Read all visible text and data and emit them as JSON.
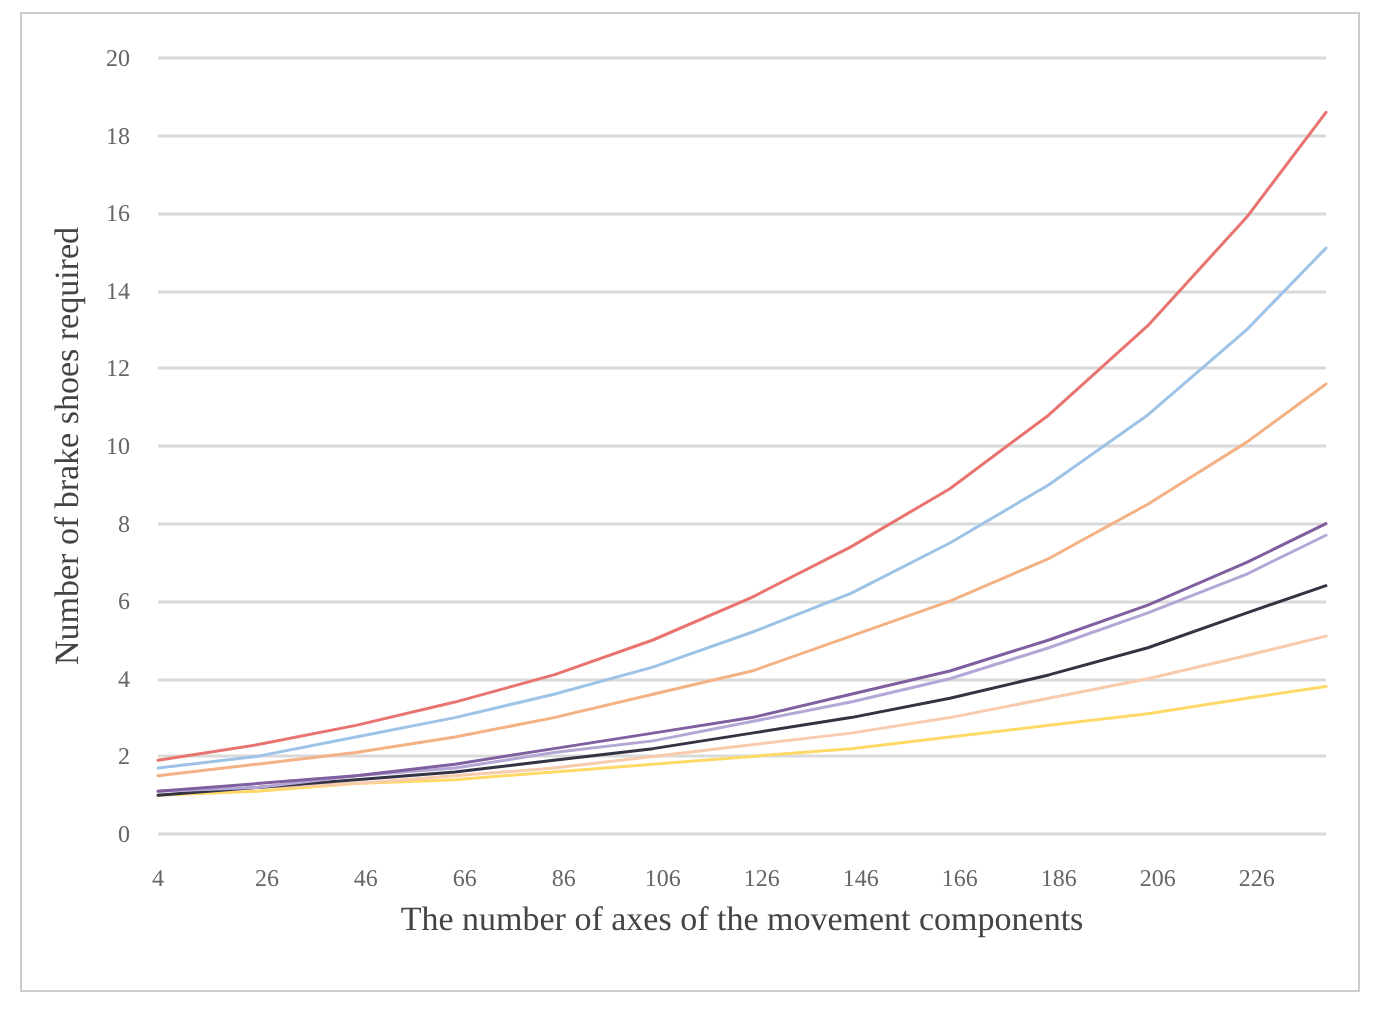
{
  "chart_data": {
    "type": "line",
    "xlabel": "The number of axes of the movement components",
    "ylabel": "Number of brake shoes required",
    "x": [
      4,
      24,
      44,
      64,
      84,
      104,
      124,
      144,
      164,
      184,
      204,
      224,
      240
    ],
    "series": [
      {
        "color": "#e8736f",
        "values": [
          1.9,
          2.3,
          2.8,
          3.4,
          4.1,
          5.0,
          6.1,
          7.4,
          8.9,
          10.8,
          13.1,
          15.9,
          18.6
        ]
      },
      {
        "color": "#9dc3e6",
        "values": [
          1.7,
          2.0,
          2.5,
          3.0,
          3.6,
          4.3,
          5.2,
          6.2,
          7.5,
          9.0,
          10.8,
          13.0,
          15.1
        ]
      },
      {
        "color": "#f4b183",
        "values": [
          1.5,
          1.8,
          2.1,
          2.5,
          3.0,
          3.6,
          4.2,
          5.1,
          6.0,
          7.1,
          8.5,
          10.1,
          11.6
        ]
      },
      {
        "color": "#7f5f9f",
        "values": [
          1.1,
          1.3,
          1.5,
          1.8,
          2.2,
          2.6,
          3.0,
          3.6,
          4.2,
          5.0,
          5.9,
          7.0,
          8.0
        ]
      },
      {
        "color": "#b4a7d6",
        "values": [
          1.1,
          1.2,
          1.5,
          1.7,
          2.1,
          2.4,
          2.9,
          3.4,
          4.0,
          4.8,
          5.7,
          6.7,
          7.7
        ]
      },
      {
        "color": "#333344",
        "values": [
          1.0,
          1.2,
          1.4,
          1.6,
          1.9,
          2.2,
          2.6,
          3.0,
          3.5,
          4.1,
          4.8,
          5.7,
          6.4
        ]
      },
      {
        "color": "#f8cbad",
        "values": [
          1.0,
          1.2,
          1.3,
          1.5,
          1.7,
          2.0,
          2.3,
          2.6,
          3.0,
          3.5,
          4.0,
          4.6,
          5.1
        ]
      },
      {
        "color": "#ffd966",
        "values": [
          1.0,
          1.1,
          1.3,
          1.4,
          1.6,
          1.8,
          2.0,
          2.2,
          2.5,
          2.8,
          3.1,
          3.5,
          3.8
        ]
      }
    ],
    "xlim": [
      4,
      240
    ],
    "xticks": [
      4,
      26,
      46,
      66,
      86,
      106,
      126,
      146,
      166,
      186,
      206,
      226
    ],
    "ylim": [
      0,
      20
    ],
    "yticks": [
      0,
      2,
      4,
      6,
      8,
      10,
      12,
      14,
      16,
      18,
      20
    ],
    "grid": "y",
    "marker": "none",
    "line_style": "solid"
  }
}
